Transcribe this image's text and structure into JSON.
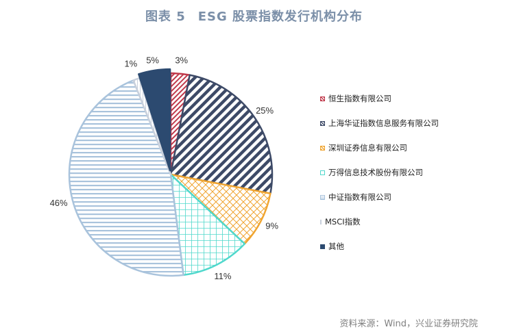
{
  "figure": {
    "label": "图表 5",
    "title": "ESG 股票指数发行机构分布"
  },
  "chart_data": {
    "type": "pie",
    "slices": [
      {
        "name": "恒生指数有限公司",
        "value": 3,
        "label": "3%",
        "color": "#c0394b",
        "pattern": "diag-fine"
      },
      {
        "name": "上海华证指数信息服务有限公司",
        "value": 25,
        "label": "25%",
        "color": "#3d4a67",
        "pattern": "diag-bold"
      },
      {
        "name": "深圳证券信息有限公司",
        "value": 9,
        "label": "9%",
        "color": "#f0a531",
        "pattern": "crosshatch-diag"
      },
      {
        "name": "万得信息技术股份有限公司",
        "value": 11,
        "label": "11%",
        "color": "#4fd8cc",
        "pattern": "grid"
      },
      {
        "name": "中证指数有限公司",
        "value": 46,
        "label": "46%",
        "color": "#a9c3dc",
        "pattern": "horizontal"
      },
      {
        "name": "MSCI指数",
        "value": 1,
        "label": "1%",
        "color": "#d8dde6",
        "pattern": "vertical"
      },
      {
        "name": "其他",
        "value": 5,
        "label": "5%",
        "color": "#2c4a70",
        "pattern": "solid"
      }
    ],
    "legend_position": "right"
  },
  "source": "资料来源：Wind，兴业证券研究院"
}
